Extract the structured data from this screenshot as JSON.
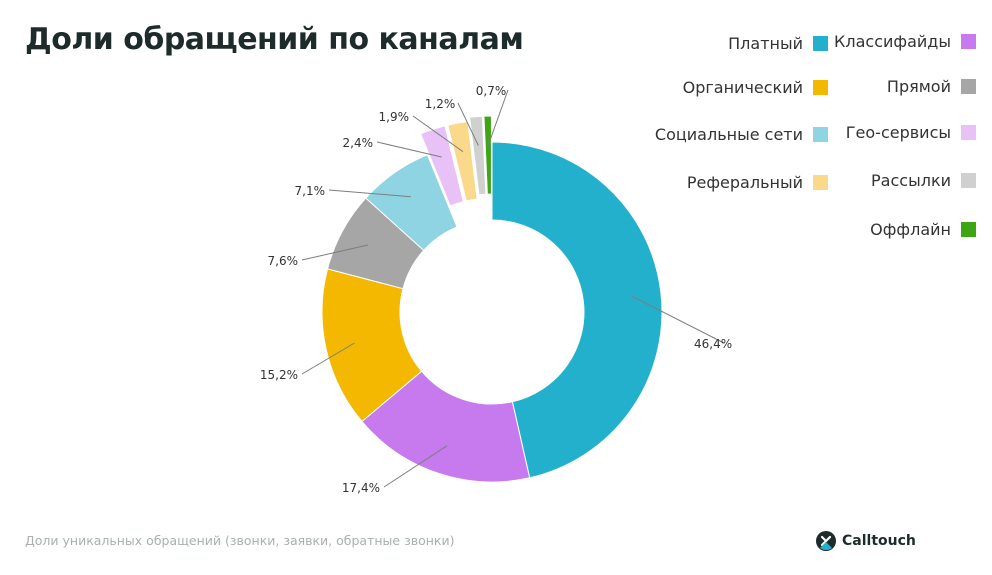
{
  "title": "Доли обращений по каналам",
  "footer_note": "Доли уникальных обращений (звонки, заявки, обратные звонки)",
  "brand": {
    "name": "Calltouch",
    "icon": "calltouch-logo-icon"
  },
  "chart_data": {
    "type": "pie",
    "variant": "donut",
    "title": "Доли обращений по каналам",
    "legend_position": "top-right",
    "slices": [
      {
        "name": "Платный",
        "value": 46.4,
        "label": "46,4%",
        "color": "#23b0cc"
      },
      {
        "name": "Классифайды",
        "value": 17.4,
        "label": "17,4%",
        "color": "#c779ee"
      },
      {
        "name": "Органический",
        "value": 15.2,
        "label": "15,2%",
        "color": "#f5b800"
      },
      {
        "name": "Прямой",
        "value": 7.6,
        "label": "7,6%",
        "color": "#a6a6a6"
      },
      {
        "name": "Социальные сети",
        "value": 7.1,
        "label": "7,1%",
        "color": "#8fd4e2"
      },
      {
        "name": "Гео-сервисы",
        "value": 2.4,
        "label": "2,4%",
        "color": "#e8c2f6"
      },
      {
        "name": "Реферальный",
        "value": 1.9,
        "label": "1,9%",
        "color": "#fbd98b"
      },
      {
        "name": "Рассылки",
        "value": 1.2,
        "label": "1,2%",
        "color": "#d0d0d0"
      },
      {
        "name": "Оффлайн",
        "value": 0.7,
        "label": "0,7%",
        "color": "#3da612"
      }
    ]
  }
}
